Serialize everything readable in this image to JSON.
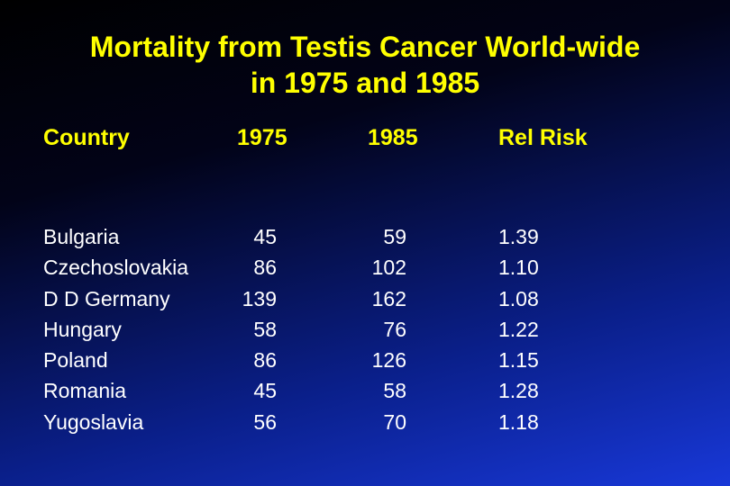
{
  "title": {
    "line1": "Mortality from Testis Cancer World-wide",
    "line2": "in 1975 and 1985"
  },
  "table": {
    "headers": [
      "Country",
      "1975",
      "1985",
      "Rel Risk"
    ],
    "rows": [
      {
        "country": "Bulgaria",
        "y1975": "45",
        "y1985": "59",
        "rel_risk": "1.39"
      },
      {
        "country": "Czechoslovakia",
        "y1975": "86",
        "y1985": "102",
        "rel_risk": "1.10"
      },
      {
        "country": "D D Germany",
        "y1975": "139",
        "y1985": "162",
        "rel_risk": "1.08"
      },
      {
        "country": "Hungary",
        "y1975": "58",
        "y1985": "76",
        "rel_risk": "1.22"
      },
      {
        "country": "Poland",
        "y1975": "86",
        "y1985": "126",
        "rel_risk": "1.15"
      },
      {
        "country": "Romania",
        "y1975": "45",
        "y1985": "58",
        "rel_risk": "1.28"
      },
      {
        "country": "Yugoslavia",
        "y1975": "56",
        "y1985": "70",
        "rel_risk": "1.18"
      }
    ]
  },
  "colors": {
    "title": "#ffff00",
    "header": "#ffff00",
    "body_text": "#ffffff",
    "background_top": "#000000",
    "background_bottom": "#1838d8"
  }
}
